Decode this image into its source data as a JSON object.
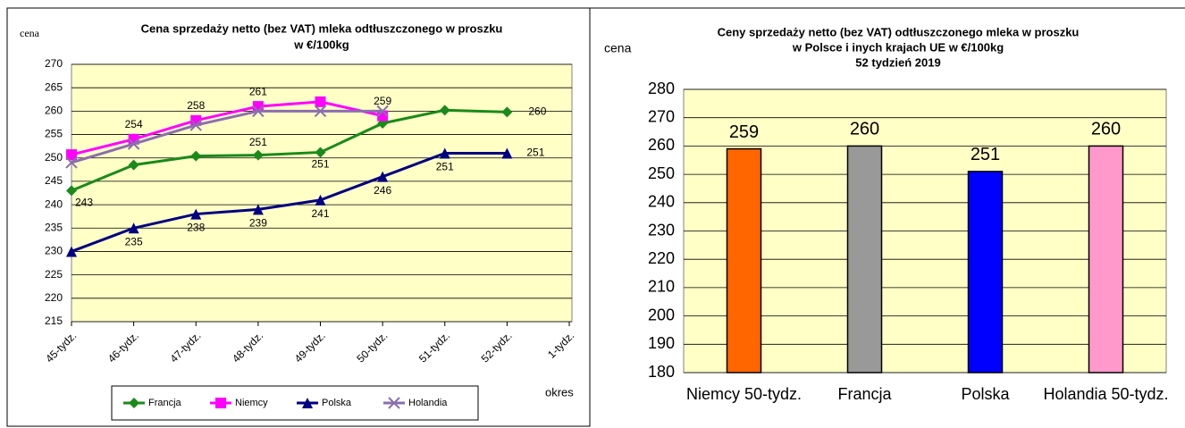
{
  "chart_data": [
    {
      "type": "line",
      "title": [
        "Cena sprzedaży netto (bez VAT) mleka  odtłuszczonego  w proszku",
        "w €/100kg"
      ],
      "y_label": "cena",
      "x_label": "okres",
      "categories": [
        "45-tydz.",
        "46-tydz.",
        "47-tydz.",
        "48-tydz.",
        "49-tydz.",
        "50-tydz.",
        "51-tydz.",
        "52-tydz.",
        "1-tydz."
      ],
      "ylim": [
        215,
        270
      ],
      "yticks": [
        215,
        220,
        225,
        230,
        235,
        240,
        245,
        250,
        255,
        260,
        265,
        270
      ],
      "grid": true,
      "legend": "bottom",
      "series": [
        {
          "name": "Francja",
          "color": "#1a8a1a",
          "marker": "diamond",
          "values": [
            243,
            248.5,
            250.4,
            250.6,
            251.2,
            257.4,
            260.2,
            259.8,
            null
          ],
          "value_labels": [
            "243",
            null,
            null,
            "251",
            "251",
            null,
            null,
            "260",
            null
          ]
        },
        {
          "name": "Niemcy",
          "color": "#ff00ff",
          "marker": "square",
          "values": [
            250.7,
            254,
            258,
            261,
            262,
            259,
            null,
            null,
            null
          ],
          "value_labels": [
            null,
            "254",
            "258",
            "261",
            null,
            "259",
            null,
            null,
            null
          ]
        },
        {
          "name": "Polska",
          "color": "#000080",
          "marker": "triangle",
          "values": [
            230,
            235,
            238,
            239,
            241,
            246,
            251,
            251,
            null
          ],
          "value_labels": [
            null,
            "235",
            "238",
            "239",
            "241",
            "246",
            "251",
            "251",
            null
          ]
        },
        {
          "name": "Holandia",
          "color": "#8a6fae",
          "marker": "x",
          "values": [
            249,
            253,
            257,
            260,
            260,
            260,
            null,
            null,
            null
          ]
        }
      ]
    },
    {
      "type": "bar",
      "title": [
        "Ceny sprzedaży netto  (bez VAT) odtłuszczonego mleka w proszku",
        "w Polsce i inych  krajach UE w €/100kg",
        "52  tydzień 2019"
      ],
      "y_label": "cena",
      "categories": [
        "Niemcy 50-tydz.",
        "Francja",
        "Polska",
        "Holandia 50-tydz."
      ],
      "values": [
        259,
        260,
        251,
        260
      ],
      "colors": [
        "#ff6600",
        "#999999",
        "#0000ff",
        "#ff99cc"
      ],
      "ylim": [
        180,
        280
      ],
      "yticks": [
        180,
        190,
        200,
        210,
        220,
        230,
        240,
        250,
        260,
        270,
        280
      ],
      "grid": true
    }
  ]
}
